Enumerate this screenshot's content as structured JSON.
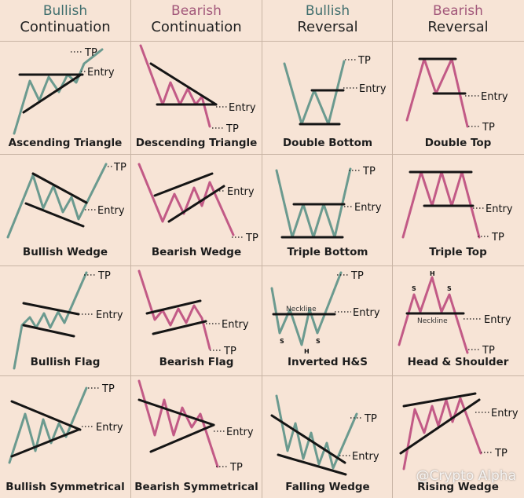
{
  "headers": [
    {
      "line1": "Bullish",
      "line2": "Continuation"
    },
    {
      "line1": "Bearish",
      "line2": "Continuation"
    },
    {
      "line1": "Bullish",
      "line2": "Reversal"
    },
    {
      "line1": "Bearish",
      "line2": "Reversal"
    }
  ],
  "patterns": [
    [
      "Ascending Triangle",
      "Descending Triangle",
      "Double Bottom",
      "Double Top"
    ],
    [
      "Bullish Wedge",
      "Bearish Wedge",
      "Triple Bottom",
      "Triple Top"
    ],
    [
      "Bullish Flag",
      "Bearish Flag",
      "Inverted H&S",
      "Head & Shoulder"
    ],
    [
      "Bullish Symmetrical",
      "Bearish Symmetrical",
      "Falling Wedge",
      "Rising Wedge"
    ]
  ],
  "labels": {
    "tp": "TP",
    "entry": "Entry",
    "neckline": "Neckline",
    "shoulder": "S",
    "head": "H"
  },
  "watermark": "@Crypto Alpha",
  "colors": {
    "background": "#f7e4d6",
    "grid": "#c8b4a4",
    "bullish": "#6b9a8f",
    "bearish": "#c25a86",
    "lines": "#151515"
  }
}
